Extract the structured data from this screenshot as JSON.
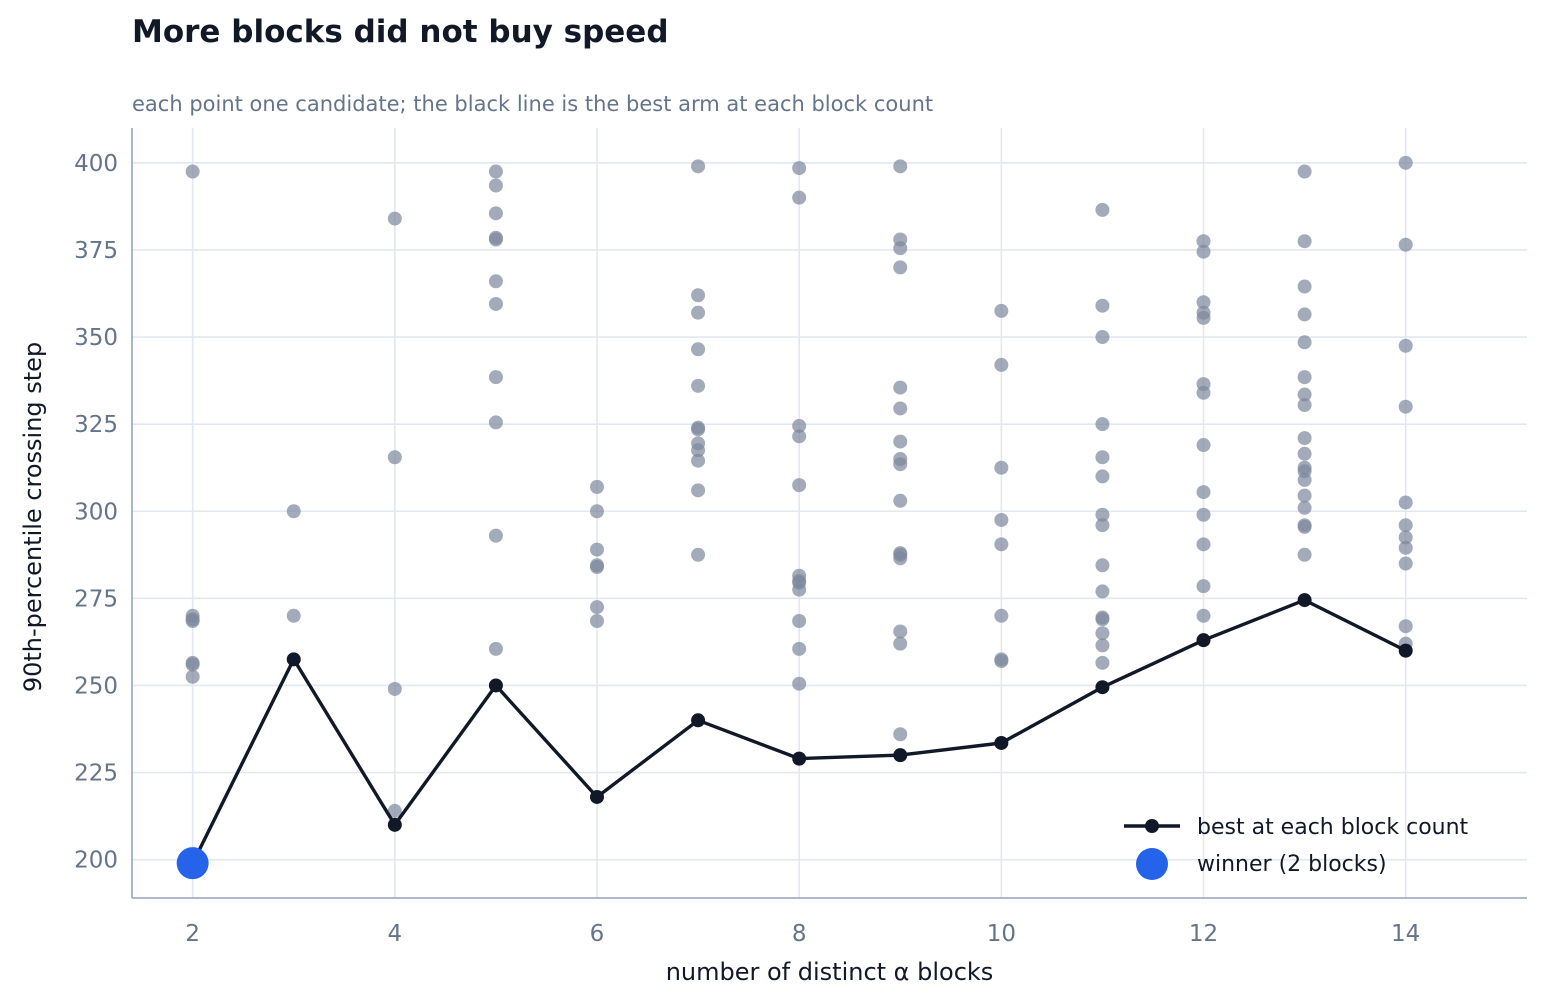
{
  "title": "More blocks did not buy speed",
  "subtitle": "each point one candidate; the black line is the best arm at each block count",
  "colors": {
    "candidate": "#7c889c",
    "best_line": "#111827",
    "winner": "#2563eb",
    "grid": "#e2e8f0",
    "axis": "#94a3b8",
    "tick_text": "#64748b"
  },
  "chart_data": {
    "type": "scatter",
    "title": "More blocks did not buy speed",
    "subtitle": "each point one candidate; the black line is the best arm at each block count",
    "xlabel": "number of distinct α blocks",
    "ylabel": "90th-percentile crossing step",
    "xlim": [
      1.4,
      15.2
    ],
    "ylim": [
      189,
      410
    ],
    "xticks": [
      2,
      4,
      6,
      8,
      10,
      12,
      14
    ],
    "yticks": [
      200,
      225,
      250,
      275,
      300,
      325,
      350,
      375,
      400
    ],
    "grid": true,
    "legend_position": "bottom-right",
    "candidates": [
      {
        "x": 2,
        "y": 397.5
      },
      {
        "x": 2,
        "y": 270
      },
      {
        "x": 2,
        "y": 269
      },
      {
        "x": 2,
        "y": 268.5
      },
      {
        "x": 2,
        "y": 256.5
      },
      {
        "x": 2,
        "y": 256
      },
      {
        "x": 2,
        "y": 252.5
      },
      {
        "x": 3,
        "y": 300
      },
      {
        "x": 3,
        "y": 270
      },
      {
        "x": 4,
        "y": 384
      },
      {
        "x": 4,
        "y": 315.5
      },
      {
        "x": 4,
        "y": 249
      },
      {
        "x": 4,
        "y": 214
      },
      {
        "x": 5,
        "y": 397.5
      },
      {
        "x": 5,
        "y": 393.5
      },
      {
        "x": 5,
        "y": 385.5
      },
      {
        "x": 5,
        "y": 378.5
      },
      {
        "x": 5,
        "y": 378
      },
      {
        "x": 5,
        "y": 366
      },
      {
        "x": 5,
        "y": 359.5
      },
      {
        "x": 5,
        "y": 338.5
      },
      {
        "x": 5,
        "y": 325.5
      },
      {
        "x": 5,
        "y": 293
      },
      {
        "x": 5,
        "y": 260.5
      },
      {
        "x": 6,
        "y": 307
      },
      {
        "x": 6,
        "y": 300
      },
      {
        "x": 6,
        "y": 289
      },
      {
        "x": 6,
        "y": 284.5
      },
      {
        "x": 6,
        "y": 284
      },
      {
        "x": 6,
        "y": 272.5
      },
      {
        "x": 6,
        "y": 268.5
      },
      {
        "x": 7,
        "y": 399
      },
      {
        "x": 7,
        "y": 362
      },
      {
        "x": 7,
        "y": 357
      },
      {
        "x": 7,
        "y": 346.5
      },
      {
        "x": 7,
        "y": 336
      },
      {
        "x": 7,
        "y": 324
      },
      {
        "x": 7,
        "y": 323.5
      },
      {
        "x": 7,
        "y": 319.5
      },
      {
        "x": 7,
        "y": 317.5
      },
      {
        "x": 7,
        "y": 314.5
      },
      {
        "x": 7,
        "y": 306
      },
      {
        "x": 7,
        "y": 287.5
      },
      {
        "x": 8,
        "y": 398.5
      },
      {
        "x": 8,
        "y": 390
      },
      {
        "x": 8,
        "y": 324.5
      },
      {
        "x": 8,
        "y": 321.5
      },
      {
        "x": 8,
        "y": 307.5
      },
      {
        "x": 8,
        "y": 281.5
      },
      {
        "x": 8,
        "y": 280
      },
      {
        "x": 8,
        "y": 279.5
      },
      {
        "x": 8,
        "y": 277.5
      },
      {
        "x": 8,
        "y": 268.5
      },
      {
        "x": 8,
        "y": 260.5
      },
      {
        "x": 8,
        "y": 250.5
      },
      {
        "x": 9,
        "y": 399
      },
      {
        "x": 9,
        "y": 378
      },
      {
        "x": 9,
        "y": 375.5
      },
      {
        "x": 9,
        "y": 370
      },
      {
        "x": 9,
        "y": 335.5
      },
      {
        "x": 9,
        "y": 329.5
      },
      {
        "x": 9,
        "y": 320
      },
      {
        "x": 9,
        "y": 315
      },
      {
        "x": 9,
        "y": 313.5
      },
      {
        "x": 9,
        "y": 303
      },
      {
        "x": 9,
        "y": 288
      },
      {
        "x": 9,
        "y": 287.5
      },
      {
        "x": 9,
        "y": 286.5
      },
      {
        "x": 9,
        "y": 265.5
      },
      {
        "x": 9,
        "y": 262
      },
      {
        "x": 9,
        "y": 236
      },
      {
        "x": 10,
        "y": 357.5
      },
      {
        "x": 10,
        "y": 342
      },
      {
        "x": 10,
        "y": 312.5
      },
      {
        "x": 10,
        "y": 297.5
      },
      {
        "x": 10,
        "y": 290.5
      },
      {
        "x": 10,
        "y": 270
      },
      {
        "x": 10,
        "y": 257.5
      },
      {
        "x": 10,
        "y": 257
      },
      {
        "x": 11,
        "y": 386.5
      },
      {
        "x": 11,
        "y": 359
      },
      {
        "x": 11,
        "y": 350
      },
      {
        "x": 11,
        "y": 325
      },
      {
        "x": 11,
        "y": 315.5
      },
      {
        "x": 11,
        "y": 310
      },
      {
        "x": 11,
        "y": 299
      },
      {
        "x": 11,
        "y": 296
      },
      {
        "x": 11,
        "y": 284.5
      },
      {
        "x": 11,
        "y": 277
      },
      {
        "x": 11,
        "y": 269.5
      },
      {
        "x": 11,
        "y": 269
      },
      {
        "x": 11,
        "y": 265
      },
      {
        "x": 11,
        "y": 261.5
      },
      {
        "x": 11,
        "y": 256.5
      },
      {
        "x": 12,
        "y": 377.5
      },
      {
        "x": 12,
        "y": 374.5
      },
      {
        "x": 12,
        "y": 360
      },
      {
        "x": 12,
        "y": 357
      },
      {
        "x": 12,
        "y": 355.5
      },
      {
        "x": 12,
        "y": 336.5
      },
      {
        "x": 12,
        "y": 334
      },
      {
        "x": 12,
        "y": 319
      },
      {
        "x": 12,
        "y": 305.5
      },
      {
        "x": 12,
        "y": 299
      },
      {
        "x": 12,
        "y": 290.5
      },
      {
        "x": 12,
        "y": 278.5
      },
      {
        "x": 12,
        "y": 270
      },
      {
        "x": 13,
        "y": 397.5
      },
      {
        "x": 13,
        "y": 377.5
      },
      {
        "x": 13,
        "y": 364.5
      },
      {
        "x": 13,
        "y": 356.5
      },
      {
        "x": 13,
        "y": 348.5
      },
      {
        "x": 13,
        "y": 338.5
      },
      {
        "x": 13,
        "y": 333.5
      },
      {
        "x": 13,
        "y": 330.5
      },
      {
        "x": 13,
        "y": 321
      },
      {
        "x": 13,
        "y": 316.5
      },
      {
        "x": 13,
        "y": 312.5
      },
      {
        "x": 13,
        "y": 311.5
      },
      {
        "x": 13,
        "y": 309
      },
      {
        "x": 13,
        "y": 304.5
      },
      {
        "x": 13,
        "y": 301
      },
      {
        "x": 13,
        "y": 296
      },
      {
        "x": 13,
        "y": 295.5
      },
      {
        "x": 13,
        "y": 287.5
      },
      {
        "x": 14,
        "y": 400
      },
      {
        "x": 14,
        "y": 376.5
      },
      {
        "x": 14,
        "y": 347.5
      },
      {
        "x": 14,
        "y": 330
      },
      {
        "x": 14,
        "y": 302.5
      },
      {
        "x": 14,
        "y": 296
      },
      {
        "x": 14,
        "y": 292.5
      },
      {
        "x": 14,
        "y": 289.5
      },
      {
        "x": 14,
        "y": 285
      },
      {
        "x": 14,
        "y": 267
      },
      {
        "x": 14,
        "y": 262
      }
    ],
    "series": [
      {
        "name": "best at each block count",
        "x": [
          2,
          3,
          4,
          5,
          6,
          7,
          8,
          9,
          10,
          11,
          12,
          13,
          14
        ],
        "values": [
          199,
          257.5,
          210,
          250,
          218,
          240,
          229,
          230,
          233.5,
          249.5,
          263,
          274.5,
          260
        ]
      },
      {
        "name": "winner (2 blocks)",
        "x": [
          2
        ],
        "values": [
          199
        ]
      }
    ]
  }
}
